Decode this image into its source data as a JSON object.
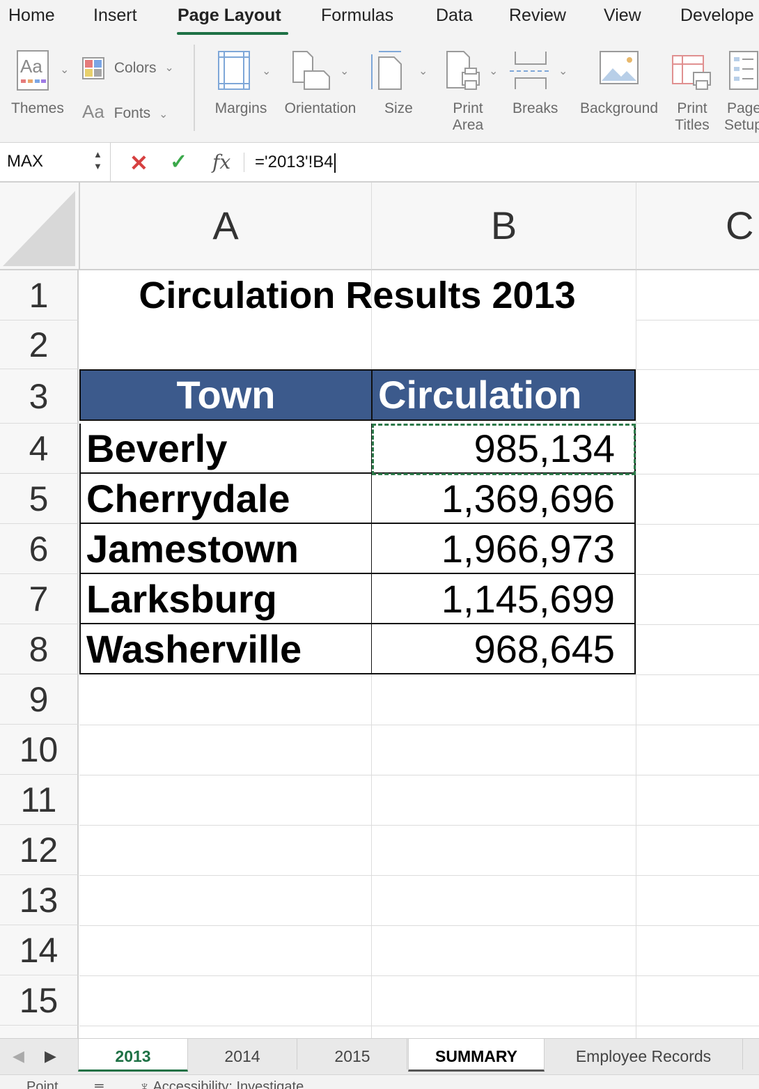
{
  "ribbon": {
    "tabs": [
      {
        "label": "Home",
        "active": false
      },
      {
        "label": "Insert",
        "active": false
      },
      {
        "label": "Page Layout",
        "active": true
      },
      {
        "label": "Formulas",
        "active": false
      },
      {
        "label": "Data",
        "active": false
      },
      {
        "label": "Review",
        "active": false
      },
      {
        "label": "View",
        "active": false
      },
      {
        "label": "Develope",
        "active": false
      }
    ],
    "tools": {
      "themes": "Themes",
      "colors": "Colors",
      "fonts": "Fonts",
      "margins": "Margins",
      "orientation": "Orientation",
      "size": "Size",
      "print_area_l1": "Print",
      "print_area_l2": "Area",
      "breaks": "Breaks",
      "background": "Background",
      "print_titles_l1": "Print",
      "print_titles_l2": "Titles",
      "page_setup_l1": "Page",
      "page_setup_l2": "Setup"
    },
    "accent_color": "#1e7145"
  },
  "formula_bar": {
    "name_box": "MAX",
    "formula": "='2013'!B4",
    "fx": "fx",
    "cancel": "✕",
    "enter": "✓"
  },
  "sheet": {
    "columns": [
      "A",
      "B",
      "C"
    ],
    "rows": [
      "1",
      "2",
      "3",
      "4",
      "5",
      "6",
      "7",
      "8",
      "9",
      "10",
      "11",
      "12",
      "13",
      "14",
      "15"
    ],
    "title": "Circulation Results 2013",
    "table_headers": {
      "town": "Town",
      "circulation": "Circulation"
    },
    "table_rows": [
      {
        "town": "Beverly",
        "circulation": "985,134"
      },
      {
        "town": "Cherrydale",
        "circulation": "1,369,696"
      },
      {
        "town": "Jamestown",
        "circulation": "1,966,973"
      },
      {
        "town": "Larksburg",
        "circulation": "1,145,699"
      },
      {
        "town": "Washerville",
        "circulation": "968,645"
      }
    ],
    "header_fill": "#3c5a8c",
    "copy_marquee_color": "#2d7a4a"
  },
  "sheet_tabs": [
    {
      "label": "2013",
      "state": "active"
    },
    {
      "label": "2014",
      "state": "normal"
    },
    {
      "label": "2015",
      "state": "normal"
    },
    {
      "label": "SUMMARY",
      "state": "editing"
    },
    {
      "label": "Employee Records",
      "state": "normal"
    }
  ],
  "status": {
    "mode": "Point",
    "accessibility": "Accessibility: Investigate"
  }
}
